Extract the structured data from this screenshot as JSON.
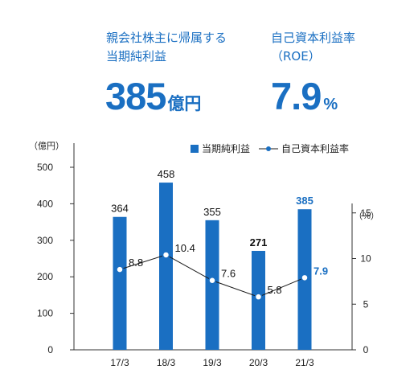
{
  "kpis": [
    {
      "label": "親会社株主に帰属する\n当期純利益",
      "value": "385",
      "unit": "億円"
    },
    {
      "label": "自己資本利益率\n（ROE）",
      "value": "7.9",
      "unit": "%"
    }
  ],
  "colors": {
    "accent": "#1a6fc2",
    "bar": "#1a6fc2",
    "line": "#1a1a1a",
    "axis": "#333333"
  },
  "chart_data": {
    "type": "bar",
    "categories": [
      "17/3",
      "18/3",
      "19/3",
      "20/3",
      "21/3"
    ],
    "series": [
      {
        "name": "当期純利益",
        "type": "bar",
        "axis": "left",
        "values": [
          364,
          458,
          355,
          271,
          385
        ]
      },
      {
        "name": "自己資本利益率",
        "type": "line",
        "axis": "right",
        "values": [
          8.8,
          10.4,
          7.6,
          5.8,
          7.9
        ]
      }
    ],
    "y_left": {
      "unit_label": "（億円）",
      "ylim": [
        0,
        500
      ],
      "ticks": [
        0,
        100,
        200,
        300,
        400,
        500
      ]
    },
    "y_right": {
      "unit_label": "（%）",
      "ylim": [
        0,
        20
      ],
      "ticks": [
        0,
        5,
        10,
        15
      ]
    },
    "legend_position": "top-right",
    "highlight_index": 4,
    "grid": false
  }
}
